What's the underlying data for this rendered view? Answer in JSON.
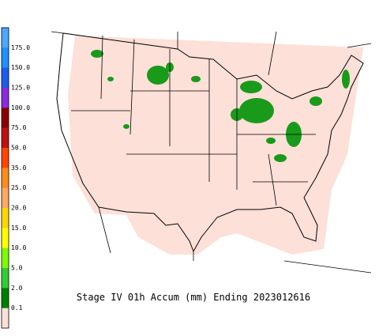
{
  "legend": {
    "labels": [
      "175.0",
      "150.0",
      "125.0",
      "100.0",
      "75.0",
      "50.0",
      "35.0",
      "25.0",
      "20.0",
      "15.0",
      "10.0",
      "5.0",
      "2.0",
      "0.1"
    ],
    "colors": [
      "#4aa8ff",
      "#1e90ff",
      "#1c5cf0",
      "#8a2be2",
      "#8b0000",
      "#c01010",
      "#ff4500",
      "#ff8c1a",
      "#ffa860",
      "#ffd700",
      "#ffff00",
      "#7cfc00",
      "#32cd32",
      "#008000",
      "#fde0d8"
    ]
  },
  "caption": "Stage IV 01h Accum (mm) Ending 2023012616"
}
